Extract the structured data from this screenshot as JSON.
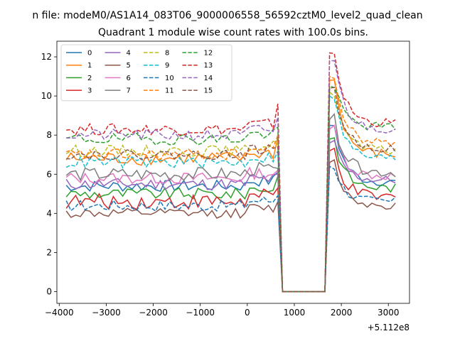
{
  "suptitle": "n file: modeM0/AS1A14_083T06_9000006558_56592cztM0_level2_quad_clean",
  "chart_data": {
    "type": "line",
    "title": "Quadrant 1 module wise count rates with 100.0s bins.",
    "xlabel": "",
    "ylabel": "",
    "x_offset_label": "+5.112e8",
    "xlim": [
      -4050,
      3450
    ],
    "ylim": [
      -0.6,
      12.8
    ],
    "xticks": [
      -4000,
      -3000,
      -2000,
      -1000,
      0,
      1000,
      2000,
      3000
    ],
    "xtick_labels": [
      "−4000",
      "−3000",
      "−2000",
      "−1000",
      "0",
      "1000",
      "2000",
      "3000"
    ],
    "yticks": [
      0,
      2,
      4,
      6,
      8,
      10,
      12
    ],
    "ytick_labels": [
      "0",
      "2",
      "4",
      "6",
      "8",
      "10",
      "12"
    ],
    "x_start": -3850,
    "x_step": 100,
    "gap_from": 700,
    "gap_to": 1650,
    "legend": {
      "location": "upper-left",
      "columns": 4
    },
    "series": [
      {
        "name": "0",
        "color": "#1f77b4",
        "dash": false,
        "pre": 5.4,
        "amp": 0.3,
        "peak": 8.5,
        "post": 5.6,
        "edge": 6.1
      },
      {
        "name": "1",
        "color": "#ff7f0e",
        "dash": false,
        "pre": 6.8,
        "amp": 0.35,
        "peak": 10.8,
        "post": 7.0,
        "edge": 7.9
      },
      {
        "name": "2",
        "color": "#2ca02c",
        "dash": false,
        "pre": 5.0,
        "amp": 0.3,
        "peak": 7.8,
        "post": 5.3,
        "edge": 5.9
      },
      {
        "name": "3",
        "color": "#d62728",
        "dash": false,
        "pre": 4.6,
        "amp": 0.4,
        "peak": 7.2,
        "post": 4.8,
        "edge": 5.3
      },
      {
        "name": "4",
        "color": "#9467bd",
        "dash": false,
        "pre": 5.5,
        "amp": 0.3,
        "peak": 7.6,
        "post": 5.7,
        "edge": 6.0
      },
      {
        "name": "5",
        "color": "#8c564b",
        "dash": false,
        "pre": 4.0,
        "amp": 0.25,
        "peak": 6.6,
        "post": 4.4,
        "edge": 4.6
      },
      {
        "name": "6",
        "color": "#e377c2",
        "dash": false,
        "pre": 5.8,
        "amp": 0.3,
        "peak": 8.3,
        "post": 5.9,
        "edge": 6.2
      },
      {
        "name": "7",
        "color": "#7f7f7f",
        "dash": false,
        "pre": 6.0,
        "amp": 0.35,
        "peak": 8.8,
        "post": 6.1,
        "edge": 6.3
      },
      {
        "name": "8",
        "color": "#bcbd22",
        "dash": true,
        "pre": 7.2,
        "amp": 0.3,
        "peak": 10.2,
        "post": 7.2,
        "edge": 7.6
      },
      {
        "name": "9",
        "color": "#17becf",
        "dash": true,
        "pre": 6.6,
        "amp": 0.3,
        "peak": 10.0,
        "post": 6.8,
        "edge": 7.2
      },
      {
        "name": "10",
        "color": "#1f77b4",
        "dash": true,
        "pre": 4.4,
        "amp": 0.3,
        "peak": 6.4,
        "post": 4.6,
        "edge": 4.9
      },
      {
        "name": "11",
        "color": "#ff7f0e",
        "dash": true,
        "pre": 7.0,
        "amp": 0.3,
        "peak": 11.0,
        "post": 7.6,
        "edge": 8.0
      },
      {
        "name": "12",
        "color": "#2ca02c",
        "dash": true,
        "pre": 7.8,
        "amp": 0.3,
        "peak": 10.5,
        "post": 8.4,
        "edge": 8.4
      },
      {
        "name": "13",
        "color": "#d62728",
        "dash": true,
        "pre": 8.3,
        "amp": 0.3,
        "peak": 12.2,
        "post": 8.6,
        "edge": 9.6
      },
      {
        "name": "14",
        "color": "#9467bd",
        "dash": true,
        "pre": 8.0,
        "amp": 0.3,
        "peak": 11.8,
        "post": 8.3,
        "edge": 8.9
      },
      {
        "name": "15",
        "color": "#8c564b",
        "dash": true,
        "pre": 7.0,
        "amp": 0.25,
        "peak": 10.4,
        "post": 7.3,
        "edge": 7.4
      }
    ]
  }
}
